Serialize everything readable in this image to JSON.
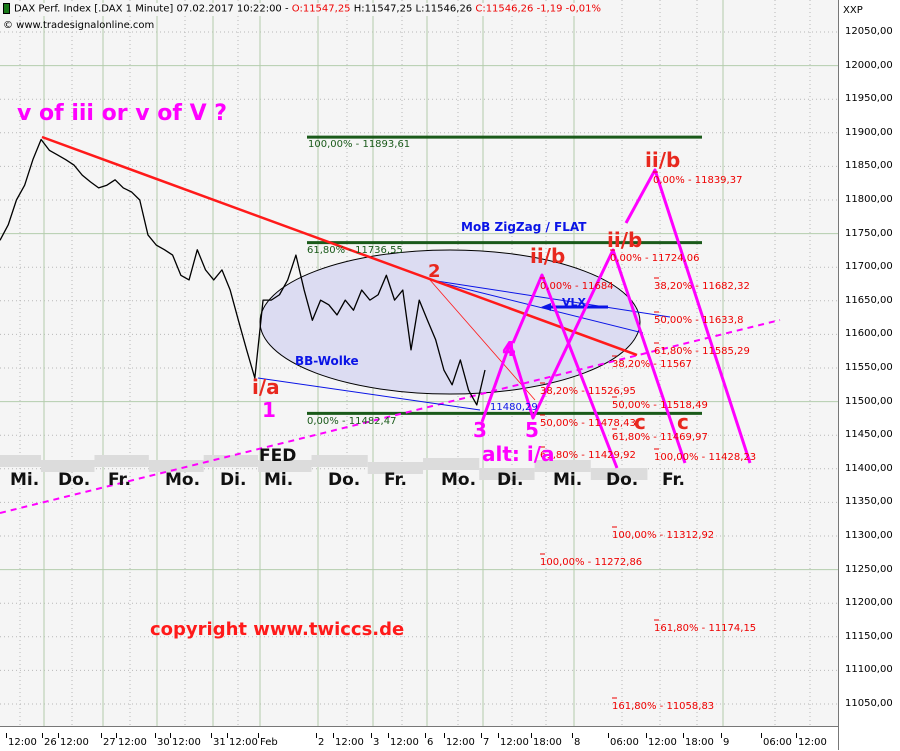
{
  "header": {
    "instrument": "DAX Perf. Index [.DAX  1 Minute] 07.02.2017 10:22:00 - ",
    "open": "O:11547,25",
    "high": " H:11547,25 L:11546,26 ",
    "close": "C:11546,26 -1,19 -0,01%",
    "source": "© www.tradesignalonline.com",
    "axis_unit": "XXP"
  },
  "annotations": {
    "title_question": "v of iii or v of V ?",
    "copyright": "copyright www.twiccs.de",
    "bb_wolke": "BB-Wolke",
    "mob": "MoB ZigZag / FLAT",
    "vlx": "VLX",
    "low_value": "11480,29",
    "fed": "FED",
    "waves_red": [
      "i/a",
      "ii/b",
      "ii/b",
      "ii/b",
      "c",
      "c"
    ],
    "waves_magenta": [
      "1",
      "2",
      "3",
      "4",
      "5",
      "alt: i/a"
    ],
    "fib_green": [
      "100,00% - 11893,61",
      "61,80% - 11736,55",
      "0,00% - 11482,47"
    ],
    "fib_red": [
      "0,00% - 11684",
      "0,00% - 11724,06",
      "0,00% - 11839,37",
      "38,20% - 11682,32",
      "50,00% - 11633,8",
      "61,80% - 11585,29",
      "38,20% - 11567",
      "38,20% - 11526,95",
      "50,00% - 11518,49",
      "50,00% - 11478,43",
      "61,80% - 11469,97",
      "61,80% - 11429,92",
      "100,00% - 11428,23",
      "100,00% - 11312,92",
      "100,00% - 11272,86",
      "161,80% - 11174,15",
      "161,80% - 11058,83"
    ],
    "weekdays": [
      "Mi.",
      "Do.",
      "Fr.",
      "Mo.",
      "Di.",
      "Mi.",
      "Do.",
      "Fr.",
      "Mo.",
      "Di.",
      "Mi.",
      "Do.",
      "Fr."
    ]
  },
  "colors": {
    "price": "#000000",
    "trend": "#ff1a1a",
    "fib_green": "#1a5a1a",
    "wave_magenta": "#ff00ff",
    "cloud": "#dcdcf2",
    "blue": "#0a14e6"
  },
  "chart_data": {
    "type": "line",
    "series": [
      {
        "values": [
          11740,
          11763,
          11800,
          11822,
          11860,
          11890,
          11874,
          11867,
          11860,
          11852,
          11837,
          11827,
          11818,
          11822,
          11830,
          11818,
          11812,
          11800,
          11748,
          11733,
          11726,
          11718,
          11688,
          11681,
          11726,
          11696,
          11681,
          11696,
          11666,
          11621,
          11577,
          11535,
          11651,
          11651,
          11659,
          11681,
          11718,
          11666,
          11621,
          11651,
          11644,
          11629,
          11651,
          11636,
          11666,
          11651,
          11659,
          11688,
          11651,
          11666,
          11577,
          11651,
          11621,
          11592,
          11547,
          11525,
          11562,
          11517,
          11495,
          11547
        ]
      }
    ],
    "y_ticks": [
      "12050,00",
      "12000,00",
      "11950,00",
      "11900,00",
      "11850,00",
      "11800,00",
      "11750,00",
      "11700,00",
      "11650,00",
      "11600,00",
      "11550,00",
      "11500,00",
      "11450,00",
      "11400,00",
      "11350,00",
      "11300,00",
      "11250,00",
      "11200,00",
      "11150,00",
      "11100,00",
      "11050,00"
    ],
    "x_ticks": [
      "12:00",
      "26",
      "12:00",
      "27",
      "12:00",
      "30",
      "12:00",
      "31",
      "12:00",
      "Feb",
      "2",
      "12:00",
      "3",
      "12:00",
      "6",
      "12:00",
      "7",
      "12:00",
      "18:00",
      "8",
      "06:00",
      "12:00",
      "18:00",
      "9",
      "06:00",
      "12:00"
    ],
    "ylim": [
      11030,
      12097
    ],
    "grid": true
  }
}
